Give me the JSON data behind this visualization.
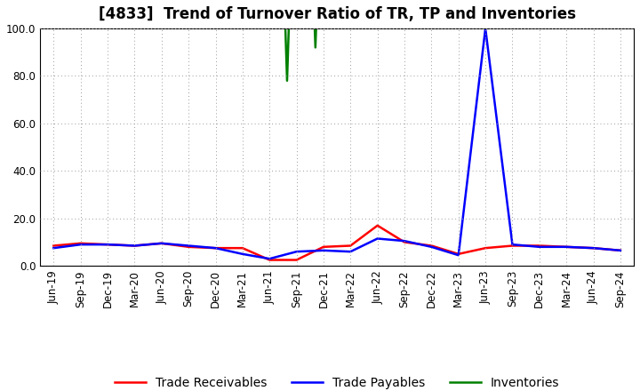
{
  "title": "[4833]  Trend of Turnover Ratio of TR, TP and Inventories",
  "title_fontsize": 12,
  "background_color": "#ffffff",
  "grid_color": "#999999",
  "ylim": [
    0.0,
    100.0
  ],
  "yticks": [
    0.0,
    20.0,
    40.0,
    60.0,
    80.0,
    100.0
  ],
  "x_labels": [
    "Jun-19",
    "Sep-19",
    "Dec-19",
    "Mar-20",
    "Jun-20",
    "Sep-20",
    "Dec-20",
    "Mar-21",
    "Jun-21",
    "Sep-21",
    "Dec-21",
    "Mar-22",
    "Jun-22",
    "Sep-22",
    "Dec-22",
    "Mar-23",
    "Jun-23",
    "Sep-23",
    "Dec-23",
    "Mar-24",
    "Jun-24",
    "Sep-24"
  ],
  "trade_receivables": [
    8.5,
    9.5,
    9.0,
    8.5,
    9.5,
    8.0,
    7.5,
    7.5,
    2.5,
    2.5,
    8.0,
    8.5,
    17.0,
    10.0,
    8.5,
    5.0,
    7.5,
    8.5,
    8.5,
    8.0,
    7.5,
    6.5
  ],
  "trade_payables": [
    7.5,
    9.0,
    9.0,
    8.5,
    9.5,
    8.5,
    7.5,
    5.0,
    3.0,
    6.0,
    6.5,
    6.0,
    11.5,
    10.5,
    8.0,
    4.5,
    100.0,
    9.0,
    8.0,
    8.0,
    7.5,
    6.5
  ],
  "tr_color": "#ff0000",
  "tp_color": "#0000ff",
  "inv_color": "#008000",
  "line_width": 1.8,
  "legend_labels": [
    "Trade Receivables",
    "Trade Payables",
    "Inventories"
  ],
  "legend_fontsize": 10,
  "tick_fontsize": 8.5,
  "inv_x": [
    8.3,
    8.65,
    9.0,
    9.35,
    9.7,
    10.05,
    10.4
  ],
  "inv_y": [
    200.0,
    78.0,
    200.0,
    200.0,
    92.0,
    200.0,
    200.0
  ]
}
